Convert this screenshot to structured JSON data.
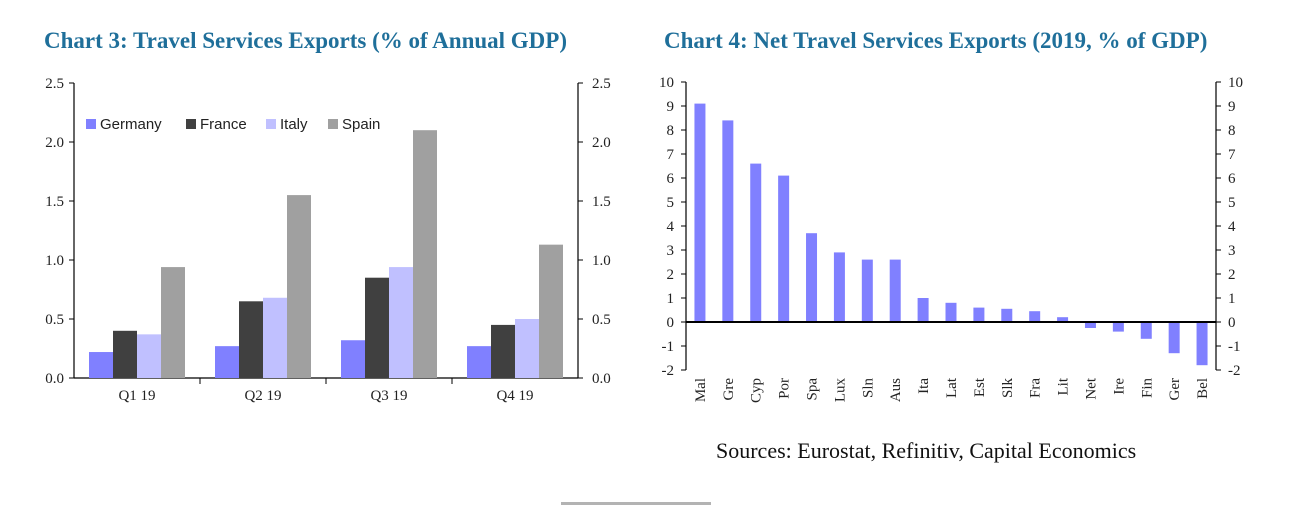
{
  "colors": {
    "title": "#1f6f9a",
    "germany": "#8080ff",
    "france": "#404040",
    "italy": "#c0c0ff",
    "spain": "#a0a0a0",
    "net": "#8080ff"
  },
  "chart_data": [
    {
      "type": "bar",
      "title": "Chart 3: Travel Services Exports (% of Annual GDP)",
      "categories": [
        "Q1 19",
        "Q2 19",
        "Q3 19",
        "Q4 19"
      ],
      "series": [
        {
          "name": "Germany",
          "values": [
            0.22,
            0.27,
            0.32,
            0.27
          ]
        },
        {
          "name": "France",
          "values": [
            0.4,
            0.65,
            0.85,
            0.45
          ]
        },
        {
          "name": "Italy",
          "values": [
            0.37,
            0.68,
            0.94,
            0.5
          ]
        },
        {
          "name": "Spain",
          "values": [
            0.94,
            1.55,
            2.1,
            1.13
          ]
        }
      ],
      "ylim": [
        0,
        2.5
      ],
      "yticks": [
        "0.0",
        "0.5",
        "1.0",
        "1.5",
        "2.0",
        "2.5"
      ],
      "xlabel": "",
      "ylabel": "",
      "legend": "top-left inside"
    },
    {
      "type": "bar",
      "title": "Chart 4: Net Travel Services Exports (2019, % of GDP)",
      "categories": [
        "Mal",
        "Gre",
        "Cyp",
        "Por",
        "Spa",
        "Lux",
        "Sln",
        "Aus",
        "Ita",
        "Lat",
        "Est",
        "Slk",
        "Fra",
        "Lit",
        "Net",
        "Ire",
        "Fin",
        "Ger",
        "Bel"
      ],
      "values": [
        9.1,
        8.4,
        6.6,
        6.1,
        3.7,
        2.9,
        2.6,
        2.6,
        1.0,
        0.8,
        0.6,
        0.55,
        0.45,
        0.2,
        -0.25,
        -0.4,
        -0.7,
        -1.3,
        -1.8
      ],
      "ylim": [
        -2,
        10
      ],
      "yticks": [
        "-2",
        "-1",
        "0",
        "1",
        "2",
        "3",
        "4",
        "5",
        "6",
        "7",
        "8",
        "9",
        "10"
      ],
      "xlabel": "",
      "ylabel": ""
    }
  ],
  "sources": "Sources: Eurostat, Refinitiv, Capital Economics"
}
